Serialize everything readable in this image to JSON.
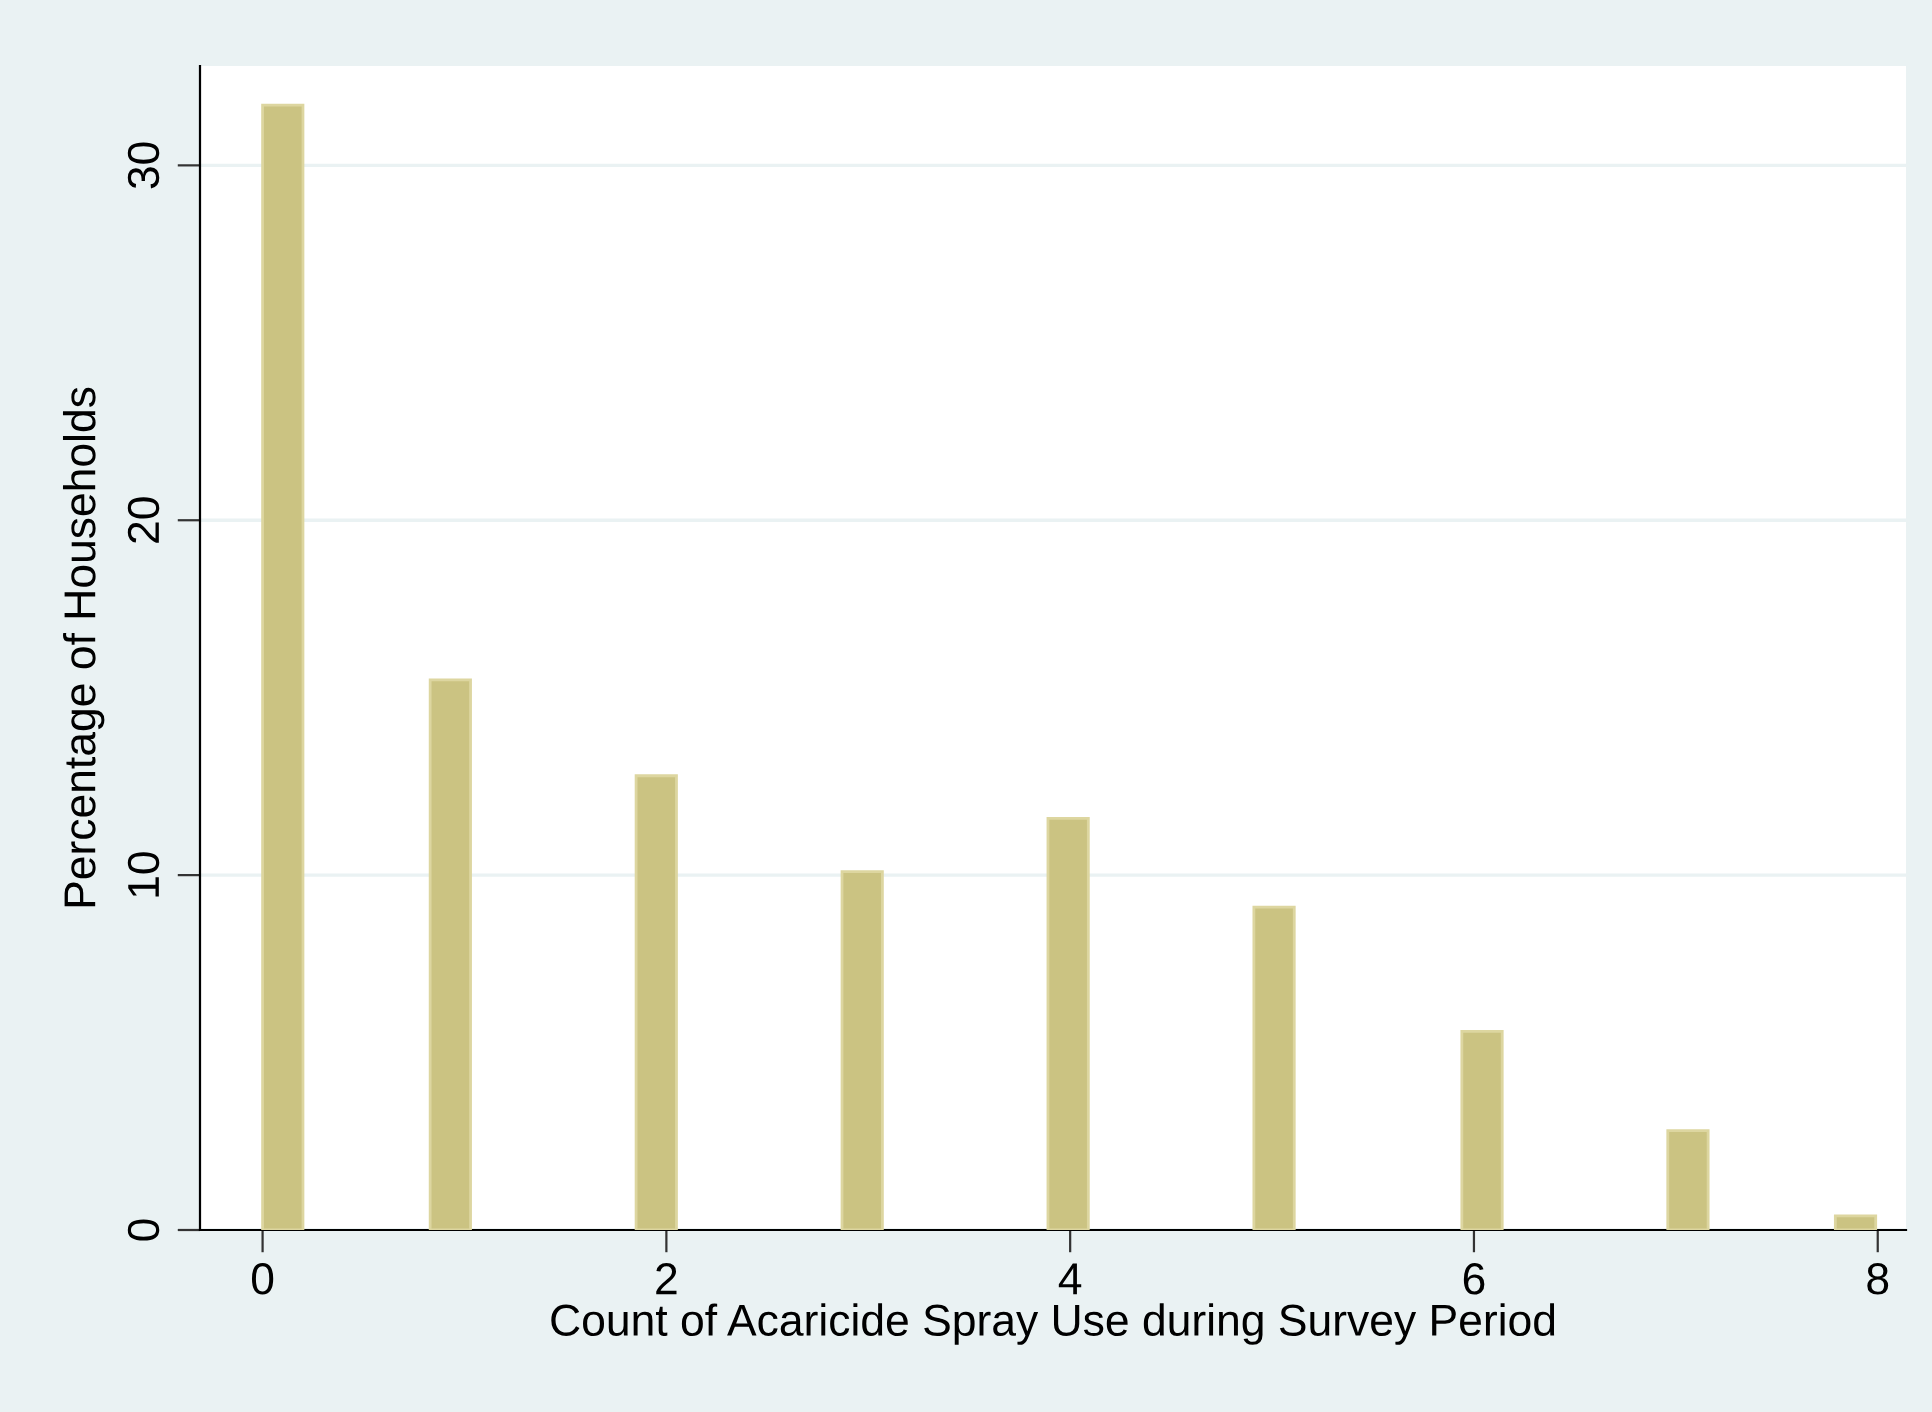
{
  "chart_data": {
    "type": "bar",
    "xlabel": "Count of Acaricide Spray Use during Survey Period",
    "ylabel": "Percentage of Households",
    "x": [
      0.1,
      0.93,
      1.95,
      2.97,
      3.99,
      5.01,
      6.04,
      7.06,
      7.89
    ],
    "values": [
      31.7,
      15.5,
      12.8,
      10.1,
      11.6,
      9.1,
      5.6,
      2.8,
      0.4
    ],
    "color": "#cbc382",
    "xlim": [
      -0.31,
      8.14
    ],
    "ylim": [
      0,
      32.8
    ],
    "xticks": [
      0,
      2,
      4,
      6,
      8
    ],
    "yticks": [
      0,
      10,
      20,
      30
    ],
    "grid": "y"
  }
}
